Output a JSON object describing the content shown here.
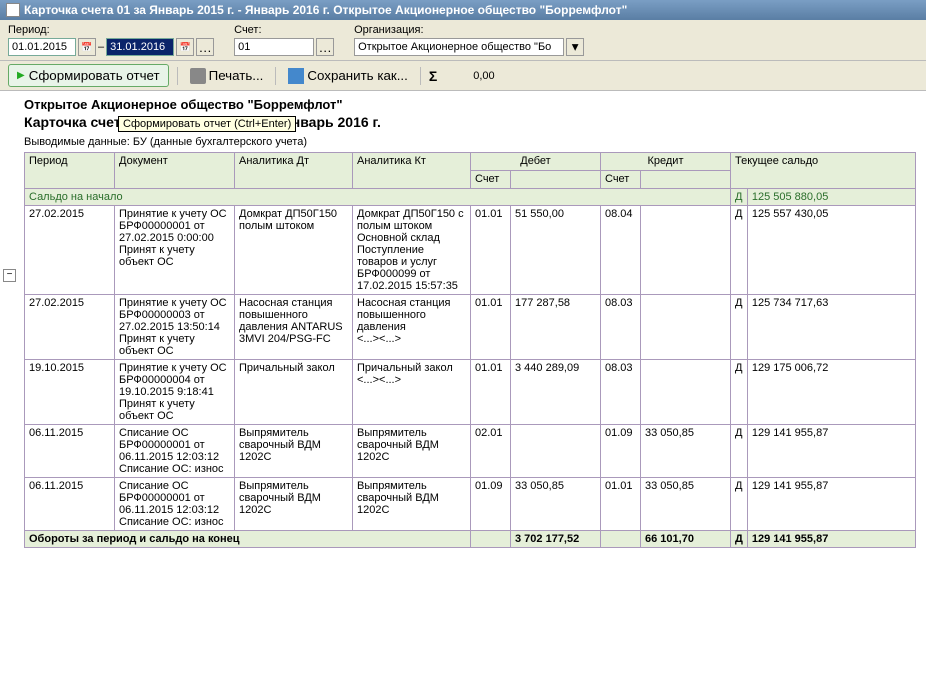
{
  "window": {
    "title": "Карточка счета 01 за Январь 2015 г. - Январь 2016 г. Открытое Акционерное общество \"Борремфлот\""
  },
  "toolbar1": {
    "period_label": "Период:",
    "date_from": "01.01.2015",
    "date_to": "31.01.2016",
    "schet_label": "Счет:",
    "schet_value": "01",
    "org_label": "Организация:",
    "org_value": "Открытое Акционерное общество \"Бо"
  },
  "toolbar2": {
    "form_report": "Сформировать отчет",
    "print": "Печать...",
    "save_as": "Сохранить как...",
    "sum": "0,00"
  },
  "tooltip": "Сформировать отчет (Ctrl+Enter)",
  "header": {
    "org": "Открытое Акционерное общество \"Борремфлот\"",
    "title": "Карточка счета 01 за Январь 2015 г. - Январь 2016 г.",
    "output": "Выводимые данные:   БУ (данные бухгалтерского учета)"
  },
  "th": {
    "period": "Период",
    "document": "Документ",
    "an_dt": "Аналитика Дт",
    "an_kt": "Аналитика Кт",
    "debet": "Дебет",
    "kredit": "Кредит",
    "saldo": "Текущее сальдо",
    "schet": "Счет"
  },
  "opening": {
    "label": "Сальдо на начало",
    "dk": "Д",
    "value": "125 505 880,05"
  },
  "rows": [
    {
      "period": "27.02.2015",
      "doc": "Принятие к учету ОС БРФ00000001 от 27.02.2015 0:00:00\nПринят к учету объект ОС",
      "an_dt": "Домкрат ДП50Г150 полым штоком",
      "an_kt": "Домкрат ДП50Г150 с полым штоком\nОсновной склад\nПоступление товаров и услуг БРФ000099 от 17.02.2015 15:57:35",
      "d_schet": "01.01",
      "d_sum": "51 550,00",
      "k_schet": "08.04",
      "k_sum": "",
      "dk": "Д",
      "bal": "125 557 430,05"
    },
    {
      "period": "27.02.2015",
      "doc": "Принятие к учету ОС БРФ00000003 от 27.02.2015 13:50:14\nПринят к учету объект ОС",
      "an_dt": "Насосная станция повышенного давления ANTARUS 3MVI 204/PSG-FC",
      "an_kt": "Насосная станция повышенного давления\n<...><...>",
      "d_schet": "01.01",
      "d_sum": "177 287,58",
      "k_schet": "08.03",
      "k_sum": "",
      "dk": "Д",
      "bal": "125 734 717,63"
    },
    {
      "period": "19.10.2015",
      "doc": "Принятие к учету ОС БРФ00000004 от 19.10.2015 9:18:41\nПринят к учету объект ОС",
      "an_dt": "Причальный закол",
      "an_kt": "Причальный закол\n<...><...>",
      "d_schet": "01.01",
      "d_sum": "3 440 289,09",
      "k_schet": "08.03",
      "k_sum": "",
      "dk": "Д",
      "bal": "129 175 006,72"
    },
    {
      "period": "06.11.2015",
      "doc": "Списание ОС БРФ00000001 от 06.11.2015 12:03:12\nСписание ОС: износ",
      "an_dt": "Выпрямитель сварочный ВДМ 1202С",
      "an_kt": "Выпрямитель сварочный ВДМ 1202С",
      "d_schet": "02.01",
      "d_sum": "",
      "k_schet": "01.09",
      "k_sum": "33 050,85",
      "dk": "Д",
      "bal": "129 141 955,87"
    },
    {
      "period": "06.11.2015",
      "doc": "Списание ОС БРФ00000001 от 06.11.2015 12:03:12\nСписание ОС: износ",
      "an_dt": "Выпрямитель сварочный ВДМ 1202С",
      "an_kt": "Выпрямитель сварочный ВДМ 1202С",
      "d_schet": "01.09",
      "d_sum": "33 050,85",
      "k_schet": "01.01",
      "k_sum": "33 050,85",
      "dk": "Д",
      "bal": "129 141 955,87"
    }
  ],
  "totals": {
    "label": "Обороты за период и сальдо на конец",
    "debet": "3 702 177,52",
    "kredit": "66 101,70",
    "dk": "Д",
    "bal": "129 141 955,87"
  }
}
